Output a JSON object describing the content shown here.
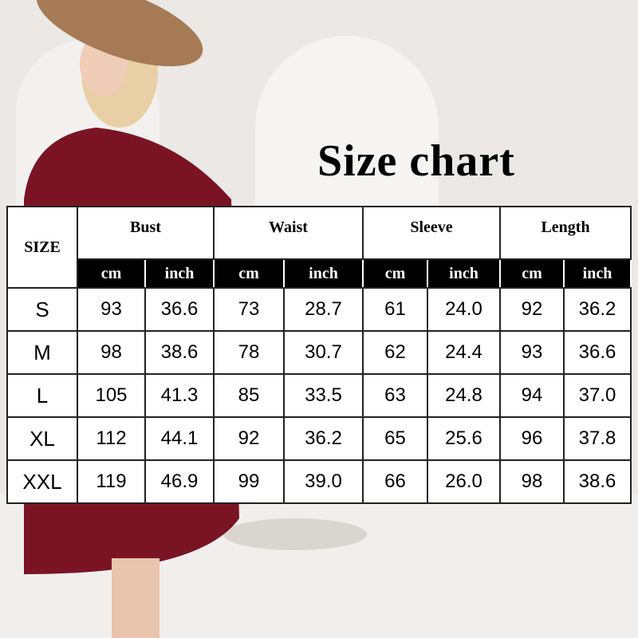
{
  "title": "Size chart",
  "table": {
    "size_header": "SIZE",
    "groups": [
      "Bust",
      "Waist",
      "Sleeve",
      "Length"
    ],
    "units": [
      "cm",
      "inch",
      "cm",
      "inch",
      "cm",
      "inch",
      "cm",
      "inch"
    ],
    "rows": [
      {
        "size": "S",
        "values": [
          "93",
          "36.6",
          "73",
          "28.7",
          "61",
          "24.0",
          "92",
          "36.2"
        ]
      },
      {
        "size": "M",
        "values": [
          "98",
          "38.6",
          "78",
          "30.7",
          "62",
          "24.4",
          "93",
          "36.6"
        ]
      },
      {
        "size": "L",
        "values": [
          "105",
          "41.3",
          "85",
          "33.5",
          "63",
          "24.8",
          "94",
          "37.0"
        ]
      },
      {
        "size": "XL",
        "values": [
          "112",
          "44.1",
          "92",
          "36.2",
          "65",
          "25.6",
          "96",
          "37.8"
        ]
      },
      {
        "size": "XXL",
        "values": [
          "119",
          "46.9",
          "99",
          "39.0",
          "66",
          "26.0",
          "98",
          "38.6"
        ]
      }
    ]
  },
  "colors": {
    "dress": "#7a1424",
    "hat": "#a67a55",
    "background": "#ebe8e5"
  }
}
